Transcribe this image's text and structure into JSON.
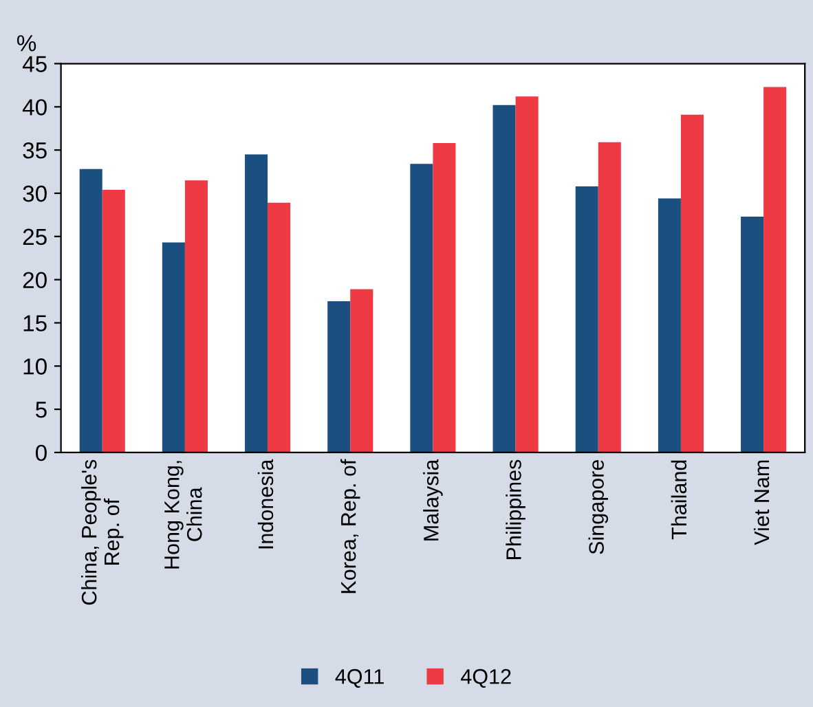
{
  "chart_data": {
    "type": "bar",
    "ylabel": "%",
    "categories": [
      "China, People's\nRep. of",
      "Hong Kong,\nChina",
      "Indonesia",
      "Korea, Rep. of",
      "Malaysia",
      "Philippines",
      "Singapore",
      "Thailand",
      "Viet Nam"
    ],
    "series": [
      {
        "name": "4Q11",
        "color": "#1b4f7f",
        "values": [
          32.8,
          24.3,
          34.5,
          17.5,
          33.4,
          40.2,
          30.8,
          29.4,
          27.3
        ]
      },
      {
        "name": "4Q12",
        "color": "#ee3a43",
        "values": [
          30.4,
          31.5,
          28.9,
          18.9,
          35.8,
          41.2,
          35.9,
          39.1,
          42.3
        ]
      }
    ],
    "ylim": [
      0,
      45
    ],
    "yticks": [
      0,
      5,
      10,
      15,
      20,
      25,
      30,
      35,
      40,
      45
    ],
    "grid": false,
    "legend": "bottom"
  }
}
